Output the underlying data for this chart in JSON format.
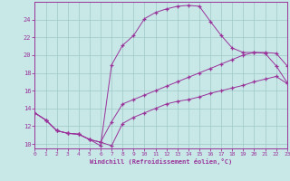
{
  "xlabel": "Windchill (Refroidissement éolien,°C)",
  "background_color": "#c8e8e8",
  "grid_color": "#a0c8c8",
  "line_color": "#993399",
  "spine_color": "#993399",
  "xmin": 0,
  "xmax": 23,
  "ymin": 9.5,
  "ymax": 26.0,
  "yticks": [
    10,
    12,
    14,
    16,
    18,
    20,
    22,
    24
  ],
  "xticks": [
    0,
    1,
    2,
    3,
    4,
    5,
    6,
    7,
    8,
    9,
    10,
    11,
    12,
    13,
    14,
    15,
    16,
    17,
    18,
    19,
    20,
    21,
    22,
    23
  ],
  "line1_x": [
    0,
    1,
    2,
    3,
    4,
    5,
    6,
    7,
    8,
    9,
    10,
    11,
    12,
    13,
    14,
    15,
    16,
    17,
    18,
    19,
    20,
    21,
    22,
    23
  ],
  "line1_y": [
    13.5,
    12.7,
    11.5,
    11.2,
    11.1,
    10.5,
    10.2,
    9.8,
    12.3,
    13.0,
    13.5,
    14.0,
    14.5,
    14.8,
    15.0,
    15.3,
    15.7,
    16.0,
    16.3,
    16.6,
    17.0,
    17.3,
    17.6,
    16.8
  ],
  "line2_x": [
    0,
    1,
    2,
    3,
    4,
    5,
    6,
    7,
    8,
    9,
    10,
    11,
    12,
    13,
    14,
    15,
    16,
    17,
    18,
    19,
    20,
    21,
    22,
    23
  ],
  "line2_y": [
    13.5,
    12.7,
    11.5,
    11.2,
    11.1,
    10.5,
    10.2,
    12.5,
    14.5,
    15.0,
    15.5,
    16.0,
    16.5,
    17.0,
    17.5,
    18.0,
    18.5,
    19.0,
    19.5,
    20.0,
    20.3,
    20.3,
    20.2,
    18.8
  ],
  "line3_x": [
    0,
    1,
    2,
    3,
    4,
    5,
    6,
    7,
    8,
    9,
    10,
    11,
    12,
    13,
    14,
    15,
    16,
    17,
    18,
    19,
    20,
    21,
    22,
    23
  ],
  "line3_y": [
    13.5,
    12.7,
    11.5,
    11.2,
    11.1,
    10.5,
    9.8,
    18.9,
    21.1,
    22.2,
    24.1,
    24.8,
    25.2,
    25.5,
    25.6,
    25.5,
    23.8,
    22.2,
    20.8,
    20.3,
    20.3,
    20.2,
    18.8,
    16.9
  ]
}
